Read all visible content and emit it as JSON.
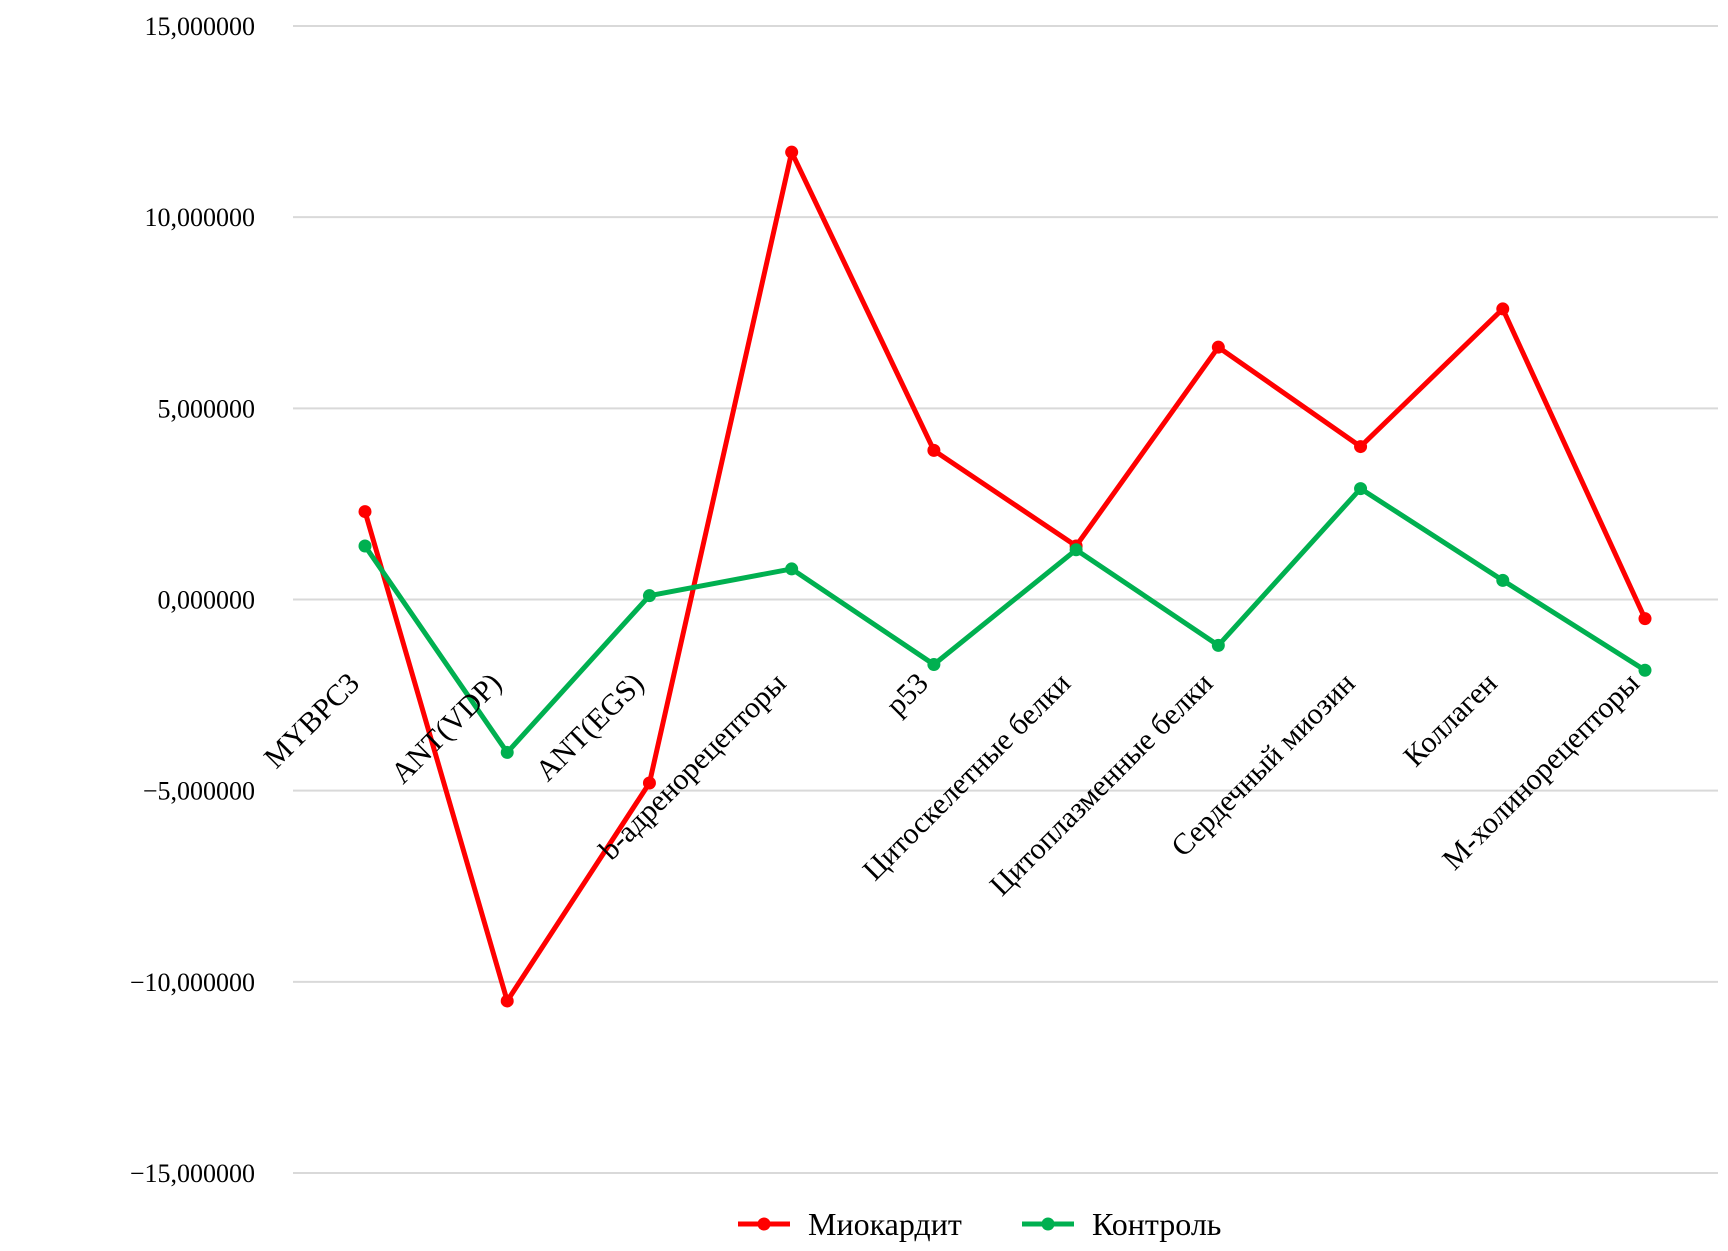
{
  "chart_data": {
    "type": "line",
    "categories": [
      "MYBPC3",
      "ANT(VDP)",
      "ANT(EGS)",
      "b-адренорецепторы",
      "p53",
      "Цитоскелетные белки",
      "Цитоплазменные белки",
      "Сердечный миозин",
      "Коллаген",
      "М-холинорецепторы"
    ],
    "series": [
      {
        "name": "Миокардит",
        "color": "#ff0000",
        "values": [
          2.3,
          -10.5,
          -4.8,
          11.7,
          3.9,
          1.4,
          6.6,
          4.0,
          7.6,
          -0.5
        ]
      },
      {
        "name": "Контроль",
        "color": "#00b050",
        "values": [
          1.4,
          -4.0,
          0.1,
          0.8,
          -1.7,
          1.3,
          -1.2,
          2.9,
          0.5,
          -1.85
        ]
      }
    ],
    "ylim": [
      -15,
      15
    ],
    "yticks": [
      15,
      10,
      5,
      0,
      -5,
      -10,
      -15
    ],
    "ytick_labels": [
      "15,000000",
      "10,000000",
      "5,000000",
      "0,000000",
      "−5,000000",
      "−10,000000",
      "−15,000000"
    ],
    "grid": true,
    "legend_position": "bottom"
  }
}
